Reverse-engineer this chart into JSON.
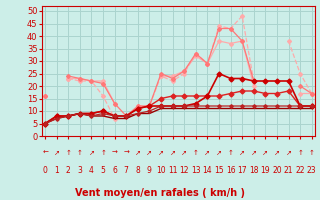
{
  "xlabel": "Vent moyen/en rafales ( km/h )",
  "background_color": "#cceee8",
  "grid_color": "#aad4ce",
  "x": [
    0,
    1,
    2,
    3,
    4,
    5,
    6,
    7,
    8,
    9,
    10,
    11,
    12,
    13,
    14,
    15,
    16,
    17,
    18,
    19,
    20,
    21,
    22,
    23
  ],
  "series": [
    {
      "name": "light_line1",
      "y": [
        16,
        null,
        23,
        23,
        22,
        22,
        13,
        null,
        null,
        null,
        24,
        24,
        26,
        32,
        29,
        38,
        37,
        38,
        20,
        null,
        null,
        null,
        17,
        17
      ],
      "color": "#ffaaaa",
      "linewidth": 0.9,
      "marker": "D",
      "markersize": 2.0,
      "linestyle": "-"
    },
    {
      "name": "light_line2_dashed",
      "y": [
        16,
        null,
        23,
        22,
        22,
        16,
        7,
        null,
        12,
        12,
        24,
        22,
        25,
        33,
        29,
        44,
        43,
        48,
        22,
        null,
        null,
        38,
        25,
        17
      ],
      "color": "#ffaaaa",
      "linewidth": 0.9,
      "marker": "D",
      "markersize": 2.0,
      "linestyle": "--"
    },
    {
      "name": "medium_line",
      "y": [
        16,
        null,
        24,
        23,
        22,
        21,
        13,
        8,
        12,
        12,
        25,
        23,
        26,
        33,
        29,
        43,
        43,
        38,
        22,
        null,
        null,
        null,
        20,
        17
      ],
      "color": "#ff7777",
      "linewidth": 0.9,
      "marker": "D",
      "markersize": 2.0,
      "linestyle": "-"
    },
    {
      "name": "dark_line1",
      "y": [
        5,
        8,
        8,
        9,
        9,
        10,
        8,
        8,
        11,
        12,
        15,
        16,
        16,
        16,
        16,
        16,
        17,
        18,
        18,
        17,
        17,
        18,
        12,
        12
      ],
      "color": "#dd2222",
      "linewidth": 1.0,
      "marker": "D",
      "markersize": 2.5,
      "linestyle": "-"
    },
    {
      "name": "dark_line2",
      "y": [
        5,
        8,
        8,
        9,
        9,
        10,
        8,
        8,
        11,
        12,
        12,
        12,
        12,
        13,
        16,
        25,
        23,
        23,
        22,
        22,
        22,
        22,
        12,
        12
      ],
      "color": "#cc0000",
      "linewidth": 1.2,
      "marker": "D",
      "markersize": 2.5,
      "linestyle": "-"
    },
    {
      "name": "bottom_flat",
      "y": [
        5,
        7,
        8,
        9,
        8,
        8,
        7,
        7,
        9,
        9,
        11,
        11,
        11,
        11,
        11,
        11,
        11,
        11,
        11,
        11,
        11,
        11,
        11,
        11
      ],
      "color": "#990000",
      "linewidth": 1.0,
      "marker": null,
      "markersize": 0,
      "linestyle": "-"
    },
    {
      "name": "bottom_dotted",
      "y": [
        5,
        7,
        8,
        9,
        8,
        9,
        8,
        8,
        9,
        10,
        12,
        12,
        12,
        12,
        12,
        12,
        12,
        12,
        12,
        12,
        12,
        12,
        12,
        12
      ],
      "color": "#bb2222",
      "linewidth": 0.9,
      "marker": "D",
      "markersize": 1.8,
      "linestyle": "-"
    }
  ],
  "xlim": [
    -0.3,
    23.3
  ],
  "ylim": [
    0,
    52
  ],
  "yticks": [
    0,
    5,
    10,
    15,
    20,
    25,
    30,
    35,
    40,
    45,
    50
  ],
  "xticks": [
    0,
    1,
    2,
    3,
    4,
    5,
    6,
    7,
    8,
    9,
    10,
    11,
    12,
    13,
    14,
    15,
    16,
    17,
    18,
    19,
    20,
    21,
    22,
    23
  ],
  "arrows": [
    "←",
    "↗",
    "↑",
    "↑",
    "↗",
    "↑",
    "→",
    "→",
    "↗",
    "↗",
    "↗",
    "↗",
    "↗",
    "↑",
    "↗",
    "↗",
    "↑",
    "↗",
    "↗",
    "↗",
    "↗",
    "↗",
    "↑",
    "↑"
  ],
  "xlabel_fontsize": 7,
  "tick_fontsize": 6,
  "arrow_fontsize": 5,
  "num_fontsize": 5.5,
  "spine_color": "#cc0000",
  "tick_color": "#cc0000",
  "label_color": "#cc0000"
}
